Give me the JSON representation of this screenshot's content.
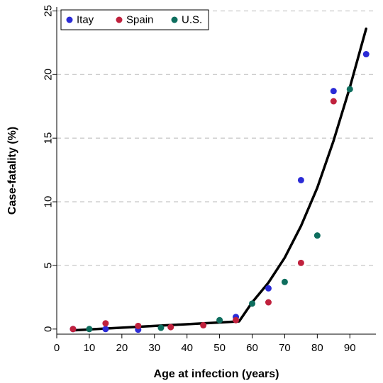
{
  "chart_data": {
    "type": "scatter",
    "title": "",
    "xlabel": "Age at infection (years)",
    "ylabel": "Case-fatality (%)",
    "xlim": [
      0,
      98
    ],
    "ylim": [
      -0.4,
      25.3
    ],
    "xticks": [
      0,
      10,
      20,
      30,
      40,
      50,
      60,
      70,
      80,
      90
    ],
    "yticks": [
      0,
      5,
      10,
      15,
      20,
      25
    ],
    "grid": "horizontal dashed",
    "legend_position": "top-left",
    "series": [
      {
        "name": "Itay",
        "color": "#2b2bd6",
        "points": [
          [
            5,
            0.0
          ],
          [
            15,
            0.0
          ],
          [
            25,
            -0.05
          ],
          [
            55,
            0.95
          ],
          [
            65,
            3.2
          ],
          [
            75,
            11.7
          ],
          [
            85,
            18.7
          ],
          [
            95,
            21.6
          ]
        ]
      },
      {
        "name": "Spain",
        "color": "#c0213d",
        "points": [
          [
            5,
            0.0
          ],
          [
            15,
            0.45
          ],
          [
            25,
            0.25
          ],
          [
            35,
            0.15
          ],
          [
            45,
            0.3
          ],
          [
            55,
            0.7
          ],
          [
            65,
            2.1
          ],
          [
            75,
            5.2
          ],
          [
            85,
            17.9
          ]
        ]
      },
      {
        "name": "U.S.",
        "color": "#0e6e5e",
        "points": [
          [
            10,
            0.0
          ],
          [
            32,
            0.1
          ],
          [
            50,
            0.7
          ],
          [
            60,
            2.0
          ],
          [
            70,
            3.7
          ],
          [
            80,
            7.35
          ],
          [
            90,
            18.85
          ]
        ]
      }
    ],
    "fit_line": {
      "color": "#000000",
      "points": [
        [
          5,
          -0.1
        ],
        [
          56,
          0.6
        ],
        [
          60,
          2.1
        ],
        [
          65,
          3.65
        ],
        [
          70,
          5.6
        ],
        [
          75,
          8.1
        ],
        [
          80,
          11.1
        ],
        [
          85,
          14.8
        ],
        [
          90,
          19.0
        ],
        [
          95,
          23.6
        ]
      ]
    }
  }
}
